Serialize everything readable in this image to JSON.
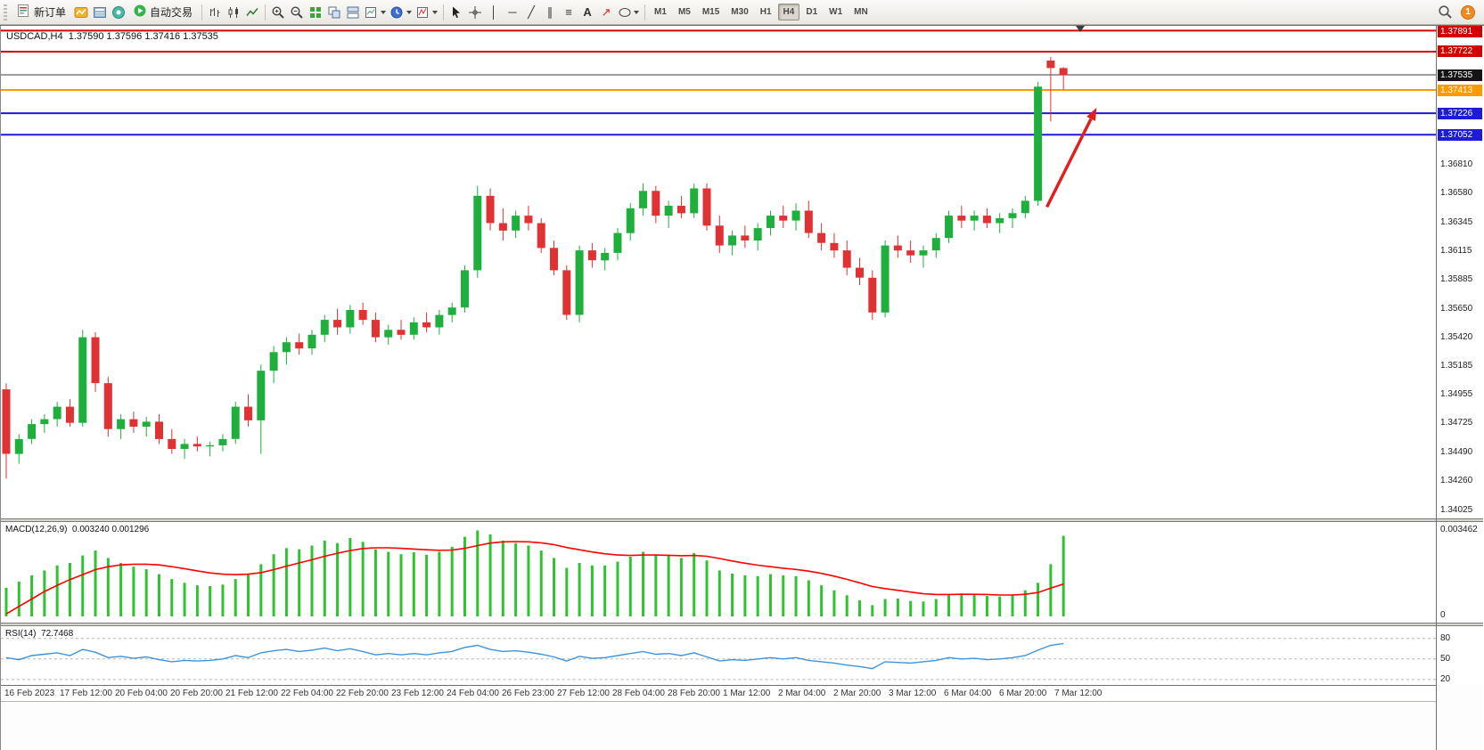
{
  "toolbar": {
    "new_order_label": "新订单",
    "autotrading_label": "自动交易",
    "timeframes": [
      "M1",
      "M5",
      "M15",
      "M30",
      "H1",
      "H4",
      "D1",
      "W1",
      "MN"
    ],
    "active_timeframe": "H4",
    "notification_count": "1"
  },
  "icons": {
    "text_tool": "A",
    "vertical_line": "│",
    "horizontal_line": "─",
    "trendline": "╱",
    "channel": "∥",
    "fibonacci": "≡",
    "arrow_tool": "↗"
  },
  "chart": {
    "title": "USDCAD,H4",
    "ohlc": "1.37590 1.37596 1.37416 1.37535",
    "symbol": "USDCAD",
    "period": "H4"
  },
  "indicators": {
    "macd": {
      "label": "MACD(12,26,9)",
      "values": "0.003240 0.001296"
    },
    "rsi": {
      "label": "RSI(14)",
      "value": "72.7468"
    }
  },
  "price_axis": {
    "line_labels": [
      {
        "text": "1.37891",
        "color": "#d40000"
      },
      {
        "text": "1.37722",
        "color": "#d40000"
      },
      {
        "text": "1.37535",
        "color": "#141414"
      },
      {
        "text": "1.37413",
        "color": "#ff9900"
      },
      {
        "text": "1.37226",
        "color": "#1c1cd6"
      },
      {
        "text": "1.37052",
        "color": "#1c1cd6"
      }
    ],
    "ticks": [
      "1.36810",
      "1.36580",
      "1.36345",
      "1.36115",
      "1.35885",
      "1.35650",
      "1.35420",
      "1.35185",
      "1.34955",
      "1.34725",
      "1.34490",
      "1.34260",
      "1.34025"
    ]
  },
  "time_axis": [
    "16 Feb 2023",
    "17 Feb 12:00",
    "20 Feb 04:00",
    "20 Feb 20:00",
    "21 Feb 12:00",
    "22 Feb 04:00",
    "22 Feb 20:00",
    "23 Feb 12:00",
    "24 Feb 04:00",
    "26 Feb 23:00",
    "27 Feb 12:00",
    "28 Feb 04:00",
    "28 Feb 20:00",
    "1 Mar 12:00",
    "2 Mar 04:00",
    "2 Mar 20:00",
    "3 Mar 12:00",
    "6 Mar 04:00",
    "6 Mar 20:00",
    "7 Mar 12:00"
  ],
  "chart_data": [
    {
      "type": "candlestick",
      "symbol": "USDCAD",
      "timeframe": "H4",
      "ylim": [
        1.3396,
        1.3793
      ],
      "up_color": "#1faf3c",
      "down_color": "#e03232",
      "candles": [
        [
          1.35,
          1.3505,
          1.3428,
          1.3448
        ],
        [
          1.3448,
          1.3464,
          1.344,
          1.346
        ],
        [
          1.346,
          1.3476,
          1.3456,
          1.3472
        ],
        [
          1.3472,
          1.348,
          1.3465,
          1.3476
        ],
        [
          1.3476,
          1.349,
          1.347,
          1.3486
        ],
        [
          1.3486,
          1.3492,
          1.347,
          1.3473
        ],
        [
          1.3473,
          1.3548,
          1.347,
          1.3542
        ],
        [
          1.3542,
          1.3546,
          1.3498,
          1.3505
        ],
        [
          1.3505,
          1.351,
          1.3462,
          1.3468
        ],
        [
          1.3468,
          1.348,
          1.346,
          1.3476
        ],
        [
          1.3476,
          1.3482,
          1.3465,
          1.347
        ],
        [
          1.347,
          1.3478,
          1.3462,
          1.3474
        ],
        [
          1.3474,
          1.348,
          1.3456,
          1.346
        ],
        [
          1.346,
          1.3468,
          1.3448,
          1.3452
        ],
        [
          1.3452,
          1.346,
          1.3444,
          1.3456
        ],
        [
          1.3456,
          1.3462,
          1.345,
          1.3454
        ],
        [
          1.3454,
          1.3458,
          1.3446,
          1.3455
        ],
        [
          1.3455,
          1.3464,
          1.345,
          1.346
        ],
        [
          1.346,
          1.349,
          1.3456,
          1.3486
        ],
        [
          1.3486,
          1.3496,
          1.347,
          1.3475
        ],
        [
          1.3475,
          1.352,
          1.3448,
          1.3515
        ],
        [
          1.3515,
          1.3535,
          1.3505,
          1.353
        ],
        [
          1.353,
          1.3542,
          1.352,
          1.3538
        ],
        [
          1.3538,
          1.3545,
          1.3528,
          1.3533
        ],
        [
          1.3533,
          1.3548,
          1.3528,
          1.3544
        ],
        [
          1.3544,
          1.356,
          1.3538,
          1.3556
        ],
        [
          1.3556,
          1.3565,
          1.3544,
          1.355
        ],
        [
          1.355,
          1.3568,
          1.3545,
          1.3564
        ],
        [
          1.3564,
          1.357,
          1.3552,
          1.3556
        ],
        [
          1.3556,
          1.3562,
          1.3538,
          1.3542
        ],
        [
          1.3542,
          1.3552,
          1.3536,
          1.3548
        ],
        [
          1.3548,
          1.3556,
          1.354,
          1.3544
        ],
        [
          1.3544,
          1.3558,
          1.354,
          1.3554
        ],
        [
          1.3554,
          1.3562,
          1.3546,
          1.355
        ],
        [
          1.355,
          1.3564,
          1.3544,
          1.356
        ],
        [
          1.356,
          1.357,
          1.3554,
          1.3566
        ],
        [
          1.3566,
          1.36,
          1.3562,
          1.3596
        ],
        [
          1.3596,
          1.3664,
          1.359,
          1.3656
        ],
        [
          1.3656,
          1.3662,
          1.3628,
          1.3634
        ],
        [
          1.3634,
          1.3646,
          1.362,
          1.3628
        ],
        [
          1.3628,
          1.3644,
          1.3622,
          1.364
        ],
        [
          1.364,
          1.3648,
          1.3628,
          1.3634
        ],
        [
          1.3634,
          1.3638,
          1.361,
          1.3614
        ],
        [
          1.3614,
          1.362,
          1.3592,
          1.3596
        ],
        [
          1.3596,
          1.36,
          1.3556,
          1.356
        ],
        [
          1.356,
          1.3616,
          1.3554,
          1.3612
        ],
        [
          1.3612,
          1.3618,
          1.3598,
          1.3604
        ],
        [
          1.3604,
          1.3614,
          1.3596,
          1.361
        ],
        [
          1.361,
          1.363,
          1.3604,
          1.3626
        ],
        [
          1.3626,
          1.365,
          1.362,
          1.3646
        ],
        [
          1.3646,
          1.3666,
          1.364,
          1.366
        ],
        [
          1.366,
          1.3664,
          1.3634,
          1.364
        ],
        [
          1.364,
          1.3652,
          1.363,
          1.3648
        ],
        [
          1.3648,
          1.3656,
          1.3638,
          1.3642
        ],
        [
          1.3642,
          1.3666,
          1.3638,
          1.3662
        ],
        [
          1.3662,
          1.3666,
          1.3628,
          1.3632
        ],
        [
          1.3632,
          1.364,
          1.361,
          1.3616
        ],
        [
          1.3616,
          1.3628,
          1.3608,
          1.3624
        ],
        [
          1.3624,
          1.3632,
          1.3614,
          1.362
        ],
        [
          1.362,
          1.3634,
          1.3612,
          1.363
        ],
        [
          1.363,
          1.3644,
          1.3624,
          1.364
        ],
        [
          1.364,
          1.3648,
          1.363,
          1.3636
        ],
        [
          1.3636,
          1.365,
          1.3628,
          1.3644
        ],
        [
          1.3644,
          1.3652,
          1.3622,
          1.3626
        ],
        [
          1.3626,
          1.3634,
          1.3612,
          1.3618
        ],
        [
          1.3618,
          1.3626,
          1.3606,
          1.3612
        ],
        [
          1.3612,
          1.362,
          1.3592,
          1.3598
        ],
        [
          1.3598,
          1.3606,
          1.3584,
          1.359
        ],
        [
          1.359,
          1.3596,
          1.3556,
          1.3562
        ],
        [
          1.3562,
          1.362,
          1.3558,
          1.3616
        ],
        [
          1.3616,
          1.3624,
          1.3606,
          1.3612
        ],
        [
          1.3612,
          1.362,
          1.3602,
          1.3608
        ],
        [
          1.3608,
          1.3616,
          1.3598,
          1.3612
        ],
        [
          1.3612,
          1.3626,
          1.3606,
          1.3622
        ],
        [
          1.3622,
          1.3644,
          1.3618,
          1.364
        ],
        [
          1.364,
          1.3648,
          1.363,
          1.3636
        ],
        [
          1.3636,
          1.3644,
          1.3628,
          1.364
        ],
        [
          1.364,
          1.3646,
          1.363,
          1.3634
        ],
        [
          1.3634,
          1.3642,
          1.3626,
          1.3638
        ],
        [
          1.3638,
          1.3646,
          1.363,
          1.3642
        ],
        [
          1.3642,
          1.3656,
          1.3638,
          1.3652
        ],
        [
          1.3652,
          1.3748,
          1.3648,
          1.3744
        ],
        [
          1.3765,
          1.3768,
          1.3716,
          1.3759
        ],
        [
          1.3759,
          1.37596,
          1.37416,
          1.37535
        ]
      ],
      "hlines": [
        {
          "price": 1.37891,
          "color": "#d40000",
          "width": 2
        },
        {
          "price": 1.37722,
          "color": "#d40000",
          "width": 2
        },
        {
          "price": 1.37535,
          "color": "#3c3c46",
          "width": 1,
          "role": "current-price"
        },
        {
          "price": 1.37413,
          "color": "#ff9900",
          "width": 2
        },
        {
          "price": 1.37226,
          "color": "#1c1cd6",
          "width": 2
        },
        {
          "price": 1.37052,
          "color": "#1c1cd6",
          "width": 2
        }
      ],
      "annotation_arrow": {
        "from_bar": 81.7,
        "from_price": 1.3647,
        "to_bar": 85.6,
        "to_price": 1.3727,
        "color": "#e01f1f"
      }
    },
    {
      "type": "bar",
      "name": "MACD(12,26,9)",
      "ylim": [
        0,
        0.00362
      ],
      "hist_color": "#2fc42f",
      "signal_color": "#ff0000",
      "axis_labels": [
        "0.003462",
        "0"
      ],
      "current_values": [
        0.00324,
        0.001296
      ],
      "histogram": [
        0.00115,
        0.0014,
        0.00165,
        0.00185,
        0.00205,
        0.00215,
        0.00245,
        0.00265,
        0.00235,
        0.00215,
        0.002,
        0.0019,
        0.0017,
        0.0015,
        0.00135,
        0.00125,
        0.00122,
        0.00128,
        0.0015,
        0.0017,
        0.0021,
        0.0025,
        0.00275,
        0.0027,
        0.00285,
        0.00305,
        0.00295,
        0.00315,
        0.003,
        0.0027,
        0.0026,
        0.0025,
        0.00258,
        0.00248,
        0.0026,
        0.0028,
        0.0032,
        0.003462,
        0.0033,
        0.00305,
        0.00295,
        0.00285,
        0.00265,
        0.00235,
        0.00195,
        0.00215,
        0.00205,
        0.00205,
        0.0022,
        0.0024,
        0.0026,
        0.00245,
        0.00245,
        0.00235,
        0.00255,
        0.00225,
        0.00185,
        0.00172,
        0.00165,
        0.00162,
        0.0017,
        0.00165,
        0.00162,
        0.00145,
        0.00125,
        0.00105,
        0.00085,
        0.00065,
        0.00045,
        0.0007,
        0.00072,
        0.00062,
        0.0006,
        0.0007,
        0.0009,
        0.00092,
        0.0009,
        0.00082,
        0.0008,
        0.00088,
        0.00105,
        0.00135,
        0.0021,
        0.00324
      ],
      "signal": [
        0.0001,
        0.0004,
        0.0007,
        0.001,
        0.00125,
        0.00148,
        0.00168,
        0.00188,
        0.002,
        0.00207,
        0.0021,
        0.0021,
        0.00207,
        0.002,
        0.00192,
        0.00183,
        0.00175,
        0.0017,
        0.00168,
        0.0017,
        0.00176,
        0.00188,
        0.00202,
        0.00215,
        0.00228,
        0.00242,
        0.00254,
        0.00265,
        0.00273,
        0.00276,
        0.00276,
        0.00274,
        0.00271,
        0.00268,
        0.00266,
        0.00267,
        0.00274,
        0.00285,
        0.00295,
        0.003,
        0.00301,
        0.003,
        0.00296,
        0.00289,
        0.00277,
        0.00268,
        0.00259,
        0.00252,
        0.00247,
        0.00245,
        0.00247,
        0.00247,
        0.00246,
        0.00244,
        0.00245,
        0.00242,
        0.00233,
        0.00223,
        0.00214,
        0.00206,
        0.002,
        0.00194,
        0.00189,
        0.00182,
        0.00173,
        0.00162,
        0.00149,
        0.00135,
        0.0012,
        0.00112,
        0.00105,
        0.00098,
        0.00091,
        0.00088,
        0.00088,
        0.00089,
        0.00089,
        0.00088,
        0.00086,
        0.00086,
        0.00089,
        0.00096,
        0.00114,
        0.0013
      ]
    },
    {
      "type": "line",
      "name": "RSI(14)",
      "ylim": [
        12,
        98
      ],
      "color": "#3d94dd",
      "levels": [
        80,
        50,
        20
      ],
      "current_value": 72.7468,
      "values": [
        52,
        49,
        55,
        57,
        59,
        55,
        64,
        60,
        52,
        54,
        51,
        53,
        49,
        46,
        48,
        47,
        48,
        50,
        55,
        52,
        59,
        62,
        64,
        61,
        63,
        66,
        62,
        65,
        61,
        56,
        58,
        56,
        58,
        56,
        59,
        61,
        67,
        70,
        64,
        61,
        62,
        60,
        57,
        53,
        47,
        54,
        51,
        52,
        55,
        58,
        61,
        57,
        58,
        55,
        59,
        53,
        47,
        49,
        48,
        50,
        52,
        50,
        52,
        48,
        46,
        44,
        41,
        39,
        36,
        46,
        45,
        44,
        46,
        48,
        52,
        50,
        51,
        49,
        50,
        52,
        55,
        63,
        70,
        72.7468
      ]
    }
  ]
}
